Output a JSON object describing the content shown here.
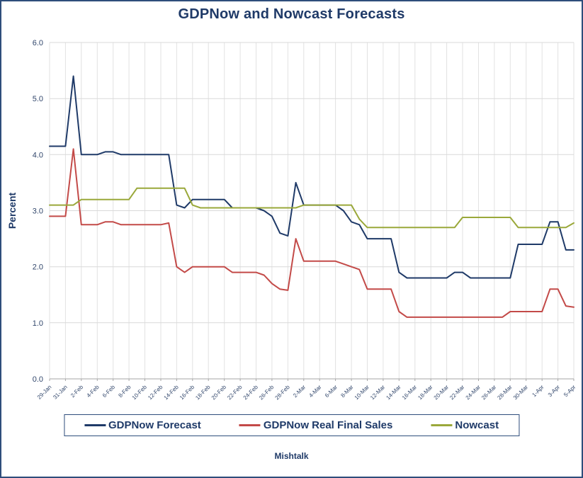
{
  "title": "GDPNow and Nowcast Forecasts",
  "footer": "Mishtalk",
  "colors": {
    "frame": "#2e4d7b",
    "title_text": "#1f3a68",
    "grid_h": "#d9d9d9",
    "grid_v": "#e2e2e2",
    "axis": "#a6a6a6",
    "tick_text": "#31466b"
  },
  "chart_data": {
    "type": "line",
    "title": "GDPNow and Nowcast Forecasts",
    "xlabel": "",
    "ylabel": "Percent",
    "ylim": [
      0.0,
      6.0
    ],
    "ytick_step": 1.0,
    "grid": true,
    "legend_position": "bottom",
    "x_label_every": 2,
    "x_labels": [
      "29-Jan",
      "31-Jan",
      "2-Feb",
      "4-Feb",
      "6-Feb",
      "8-Feb",
      "10-Feb",
      "12-Feb",
      "14-Feb",
      "16-Feb",
      "18-Feb",
      "20-Feb",
      "22-Feb",
      "24-Feb",
      "26-Feb",
      "28-Feb",
      "2-Mar",
      "4-Mar",
      "6-Mar",
      "8-Mar",
      "10-Mar",
      "12-Mar",
      "14-Mar",
      "16-Mar",
      "18-Mar",
      "20-Mar",
      "22-Mar",
      "24-Mar",
      "26-Mar",
      "28-Mar",
      "30-Mar",
      "1-Apr",
      "3-Apr",
      "5-Apr"
    ],
    "series": [
      {
        "name": "GDPNow Forecast",
        "color": "#1f3a68",
        "values": [
          4.15,
          4.15,
          4.15,
          5.4,
          4.0,
          4.0,
          4.0,
          4.05,
          4.05,
          4.0,
          4.0,
          4.0,
          4.0,
          4.0,
          4.0,
          4.0,
          3.1,
          3.05,
          3.2,
          3.2,
          3.2,
          3.2,
          3.2,
          3.05,
          3.05,
          3.05,
          3.05,
          3.0,
          2.9,
          2.6,
          2.55,
          3.5,
          3.1,
          3.1,
          3.1,
          3.1,
          3.1,
          3.0,
          2.8,
          2.75,
          2.5,
          2.5,
          2.5,
          2.5,
          1.9,
          1.8,
          1.8,
          1.8,
          1.8,
          1.8,
          1.8,
          1.9,
          1.9,
          1.8,
          1.8,
          1.8,
          1.8,
          1.8,
          1.8,
          2.4,
          2.4,
          2.4,
          2.4,
          2.8,
          2.8,
          2.3,
          2.3
        ]
      },
      {
        "name": "GDPNow Real Final Sales",
        "color": "#c34a48",
        "values": [
          2.9,
          2.9,
          2.9,
          4.1,
          2.75,
          2.75,
          2.75,
          2.8,
          2.8,
          2.75,
          2.75,
          2.75,
          2.75,
          2.75,
          2.75,
          2.78,
          2.0,
          1.9,
          2.0,
          2.0,
          2.0,
          2.0,
          2.0,
          1.9,
          1.9,
          1.9,
          1.9,
          1.85,
          1.7,
          1.6,
          1.58,
          2.5,
          2.1,
          2.1,
          2.1,
          2.1,
          2.1,
          2.05,
          2.0,
          1.95,
          1.6,
          1.6,
          1.6,
          1.6,
          1.2,
          1.1,
          1.1,
          1.1,
          1.1,
          1.1,
          1.1,
          1.1,
          1.1,
          1.1,
          1.1,
          1.1,
          1.1,
          1.1,
          1.2,
          1.2,
          1.2,
          1.2,
          1.2,
          1.6,
          1.6,
          1.3,
          1.28
        ]
      },
      {
        "name": "Nowcast",
        "color": "#9aa83a",
        "values": [
          3.1,
          3.1,
          3.1,
          3.1,
          3.2,
          3.2,
          3.2,
          3.2,
          3.2,
          3.2,
          3.2,
          3.4,
          3.4,
          3.4,
          3.4,
          3.4,
          3.4,
          3.4,
          3.1,
          3.05,
          3.05,
          3.05,
          3.05,
          3.05,
          3.05,
          3.05,
          3.05,
          3.05,
          3.05,
          3.05,
          3.05,
          3.05,
          3.1,
          3.1,
          3.1,
          3.1,
          3.1,
          3.1,
          3.1,
          2.85,
          2.7,
          2.7,
          2.7,
          2.7,
          2.7,
          2.7,
          2.7,
          2.7,
          2.7,
          2.7,
          2.7,
          2.7,
          2.88,
          2.88,
          2.88,
          2.88,
          2.88,
          2.88,
          2.88,
          2.7,
          2.7,
          2.7,
          2.7,
          2.7,
          2.7,
          2.7,
          2.78
        ]
      }
    ]
  }
}
